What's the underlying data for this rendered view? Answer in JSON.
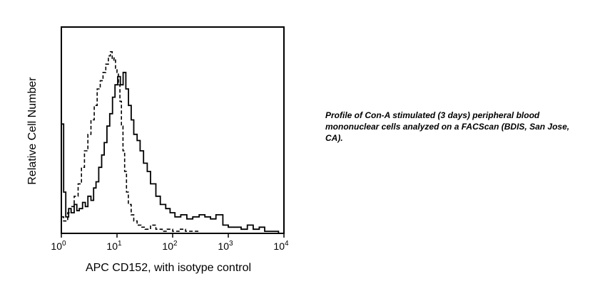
{
  "caption": "Profile of Con-A stimulated (3 days) peripheral blood mononuclear cells analyzed on a FACScan (BDIS, San Jose, CA).",
  "chart_data": {
    "type": "line",
    "title": "",
    "xlabel": "APC CD152, with isotype control",
    "ylabel": "Relative Cell Number",
    "xscale": "log",
    "xlim": [
      1,
      10000
    ],
    "ylim": [
      0,
      100
    ],
    "grid": false,
    "legend": "none",
    "x_ticks": [
      {
        "base": "10",
        "exp": "0"
      },
      {
        "base": "10",
        "exp": "1"
      },
      {
        "base": "10",
        "exp": "2"
      },
      {
        "base": "10",
        "exp": "3"
      },
      {
        "base": "10",
        "exp": "4"
      }
    ],
    "series": [
      {
        "style": "solid",
        "color": "#000000",
        "x": [
          1.0,
          1.1,
          1.2,
          1.35,
          1.5,
          1.7,
          1.9,
          2.1,
          2.4,
          2.7,
          3.0,
          3.4,
          3.8,
          4.2,
          4.7,
          5.3,
          5.9,
          6.6,
          7.4,
          8.3,
          9.2,
          10.3,
          11.5,
          12.9,
          14.4,
          16.1,
          18,
          20,
          23,
          26,
          30,
          35,
          40,
          50,
          60,
          75,
          90,
          110,
          140,
          180,
          230,
          300,
          380,
          480,
          600,
          800,
          1000,
          1300,
          1700,
          2200,
          2800,
          3600,
          4500,
          6000,
          8000,
          10000
        ],
        "y": [
          53,
          20,
          8,
          12,
          10,
          14,
          11,
          12,
          15,
          13,
          18,
          16,
          22,
          25,
          32,
          38,
          44,
          52,
          58,
          66,
          72,
          76,
          72,
          78,
          70,
          62,
          55,
          48,
          45,
          40,
          34,
          30,
          24,
          18,
          14,
          12,
          10,
          8,
          9,
          7,
          8,
          9,
          8,
          7,
          9,
          4,
          3,
          3,
          2,
          4,
          2,
          3,
          1,
          1,
          0,
          0
        ]
      },
      {
        "style": "dashed",
        "color": "#000000",
        "x": [
          1.0,
          1.1,
          1.3,
          1.5,
          1.7,
          2.0,
          2.3,
          2.6,
          3.0,
          3.4,
          3.9,
          4.4,
          5.0,
          5.6,
          6.3,
          7.0,
          7.6,
          8.2,
          8.8,
          9.4,
          10.0,
          10.6,
          11.3,
          12.0,
          12.8,
          13.7,
          14.8,
          16,
          18,
          20,
          23,
          27,
          32,
          40,
          50,
          65,
          80,
          100,
          130,
          170,
          220,
          300,
          400
        ],
        "y": [
          8,
          6,
          10,
          13,
          18,
          24,
          32,
          40,
          48,
          55,
          62,
          70,
          74,
          78,
          82,
          86,
          88,
          84,
          85,
          80,
          78,
          72,
          64,
          52,
          40,
          30,
          20,
          14,
          9,
          6,
          4,
          3,
          2,
          4,
          2,
          1,
          2,
          1,
          2,
          1,
          1,
          0,
          0
        ]
      }
    ]
  }
}
